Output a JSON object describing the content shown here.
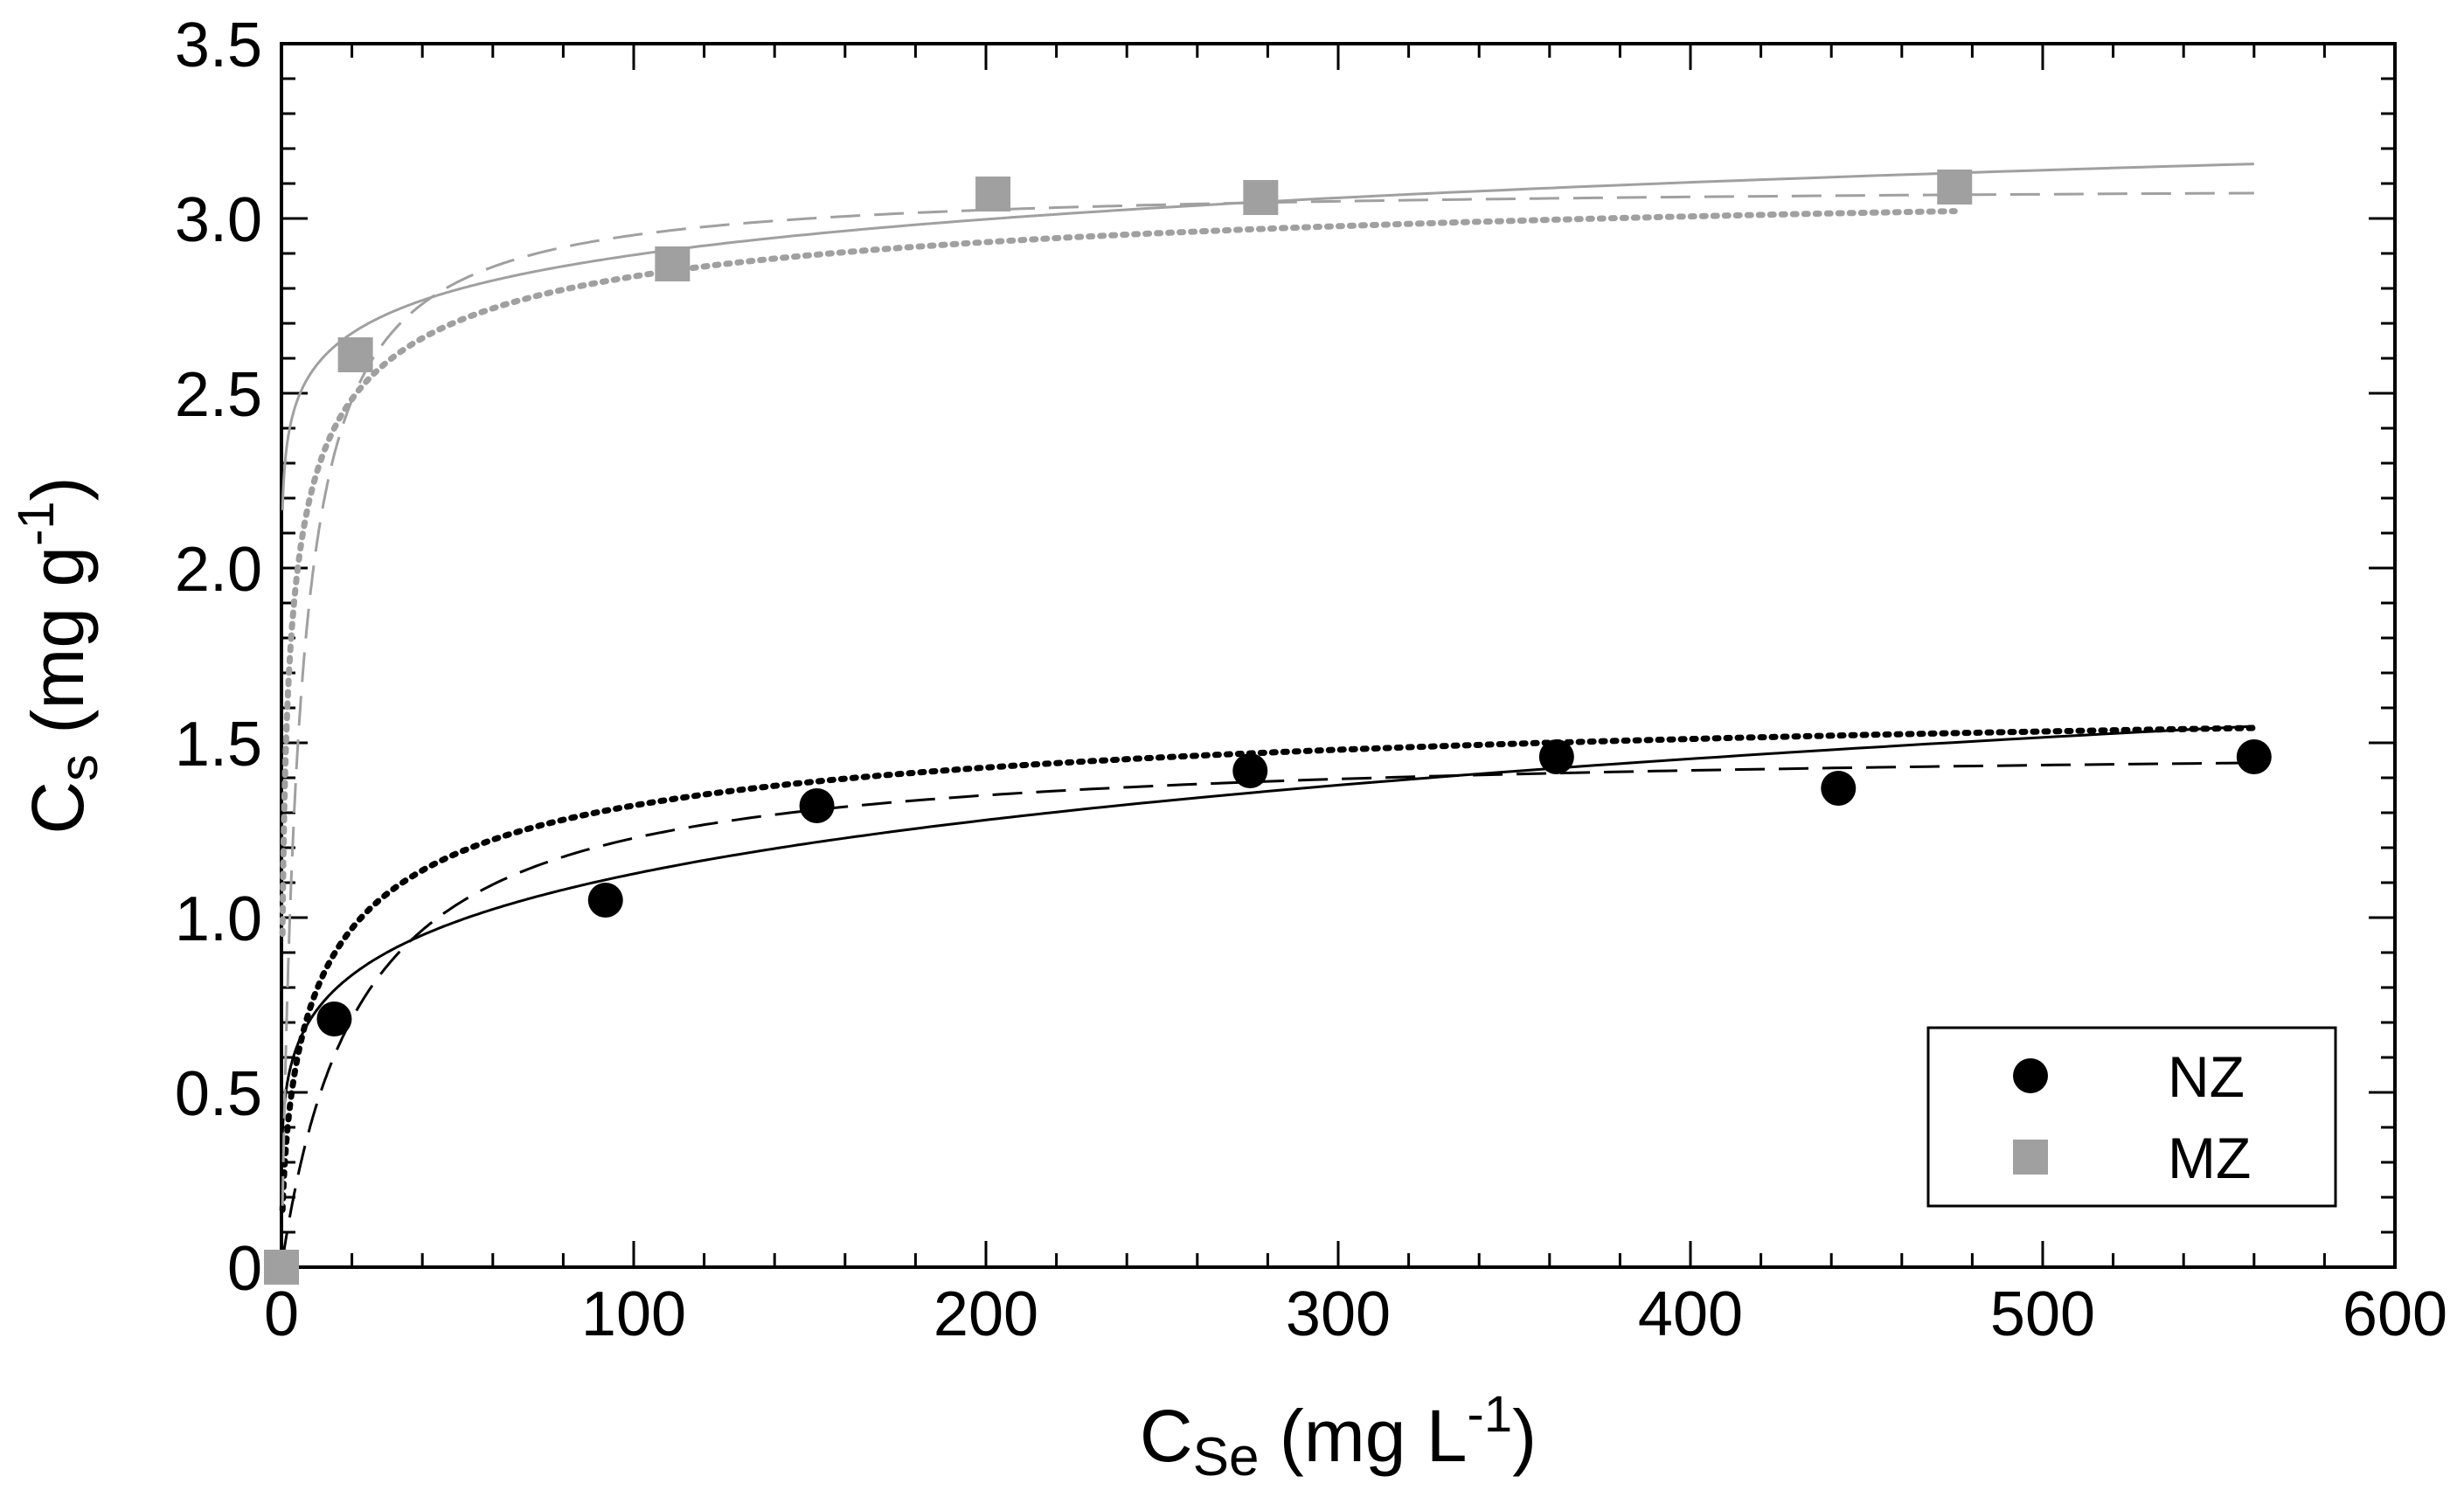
{
  "chart_data": {
    "type": "scatter",
    "title": "",
    "xlabel": {
      "main": "C",
      "sub": "Se",
      "units_prefix": " (mg L",
      "exponent": "-1",
      "units_suffix": ")"
    },
    "ylabel": {
      "main": "C",
      "sub": "s",
      "units_prefix": " (mg g",
      "exponent": "-1",
      "units_suffix": ")"
    },
    "xlim": [
      0,
      600
    ],
    "ylim": [
      0,
      3.5
    ],
    "x_ticks": [
      0,
      100,
      200,
      300,
      400,
      500,
      600
    ],
    "x_tick_labels": [
      "0",
      "100",
      "200",
      "300",
      "400",
      "500",
      "600"
    ],
    "y_ticks": [
      0,
      0.5,
      1.0,
      1.5,
      2.0,
      2.5,
      3.0,
      3.5
    ],
    "y_tick_labels": [
      "0",
      "0.5",
      "1.0",
      "1.5",
      "2.0",
      "2.5",
      "3.0",
      "3.5"
    ],
    "grid": false,
    "legend_position": "bottom-right",
    "legend": [
      "NZ",
      "MZ"
    ],
    "series": [
      {
        "name": "NZ",
        "marker": "circle",
        "color": "#000000",
        "x": [
          15,
          92,
          152,
          275,
          362,
          442,
          560
        ],
        "y": [
          0.71,
          1.05,
          1.32,
          1.42,
          1.46,
          1.37,
          1.46
        ],
        "fits": [
          {
            "model": "freundlich",
            "style": "solid",
            "kf": 0.48,
            "n": 0.185,
            "x_range": [
              0.3,
              560
            ]
          },
          {
            "model": "langmuir",
            "style": "dashed",
            "qmax": 1.5,
            "kl": 0.045,
            "x_range": [
              0.3,
              560
            ]
          },
          {
            "model": "langmuir-freundlich",
            "style": "dotted",
            "qmax": 1.7,
            "k": 0.08,
            "n": 0.6,
            "x_range": [
              0.3,
              560
            ]
          }
        ]
      },
      {
        "name": "MZ",
        "marker": "square",
        "color": "#a0a0a0",
        "x": [
          0,
          21,
          111,
          202,
          278,
          475
        ],
        "y": [
          0,
          2.61,
          2.87,
          3.07,
          3.06,
          3.09
        ],
        "fits": [
          {
            "model": "freundlich",
            "style": "solid",
            "kf": 2.3,
            "n": 0.05,
            "x_range": [
              0.3,
              560
            ]
          },
          {
            "model": "langmuir",
            "style": "dashed",
            "qmax": 3.1,
            "kl": 0.2,
            "x_range": [
              0.3,
              560
            ]
          },
          {
            "model": "langmuir-freundlich",
            "style": "dotted",
            "qmax": 3.2,
            "k": 0.6,
            "n": 0.5,
            "x_range": [
              0.3,
              475
            ]
          }
        ]
      }
    ]
  }
}
